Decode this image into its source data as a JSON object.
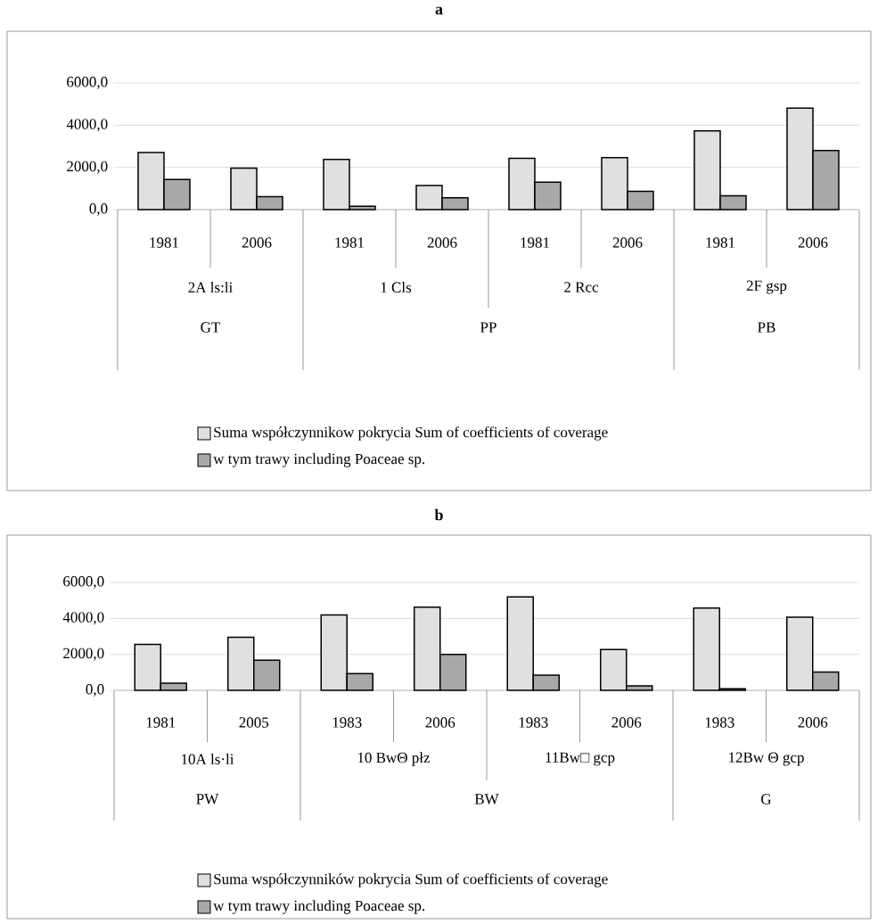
{
  "chart_data": [
    {
      "type": "bar",
      "title": "a",
      "categories": [
        "1981",
        "2006",
        "1981",
        "2006",
        "1981",
        "2006",
        "1981",
        "2006"
      ],
      "annotations": [
        "2A ls:li",
        "1 Cls",
        "2 Rcc",
        "2F gsp",
        "GT",
        "PP",
        "PB"
      ],
      "series": [
        {
          "name": "Suma współczynnikow pokrycia  Sum of coefficients of coverage",
          "color": "#e0e0e0",
          "values": [
            2700,
            1960,
            2380,
            1140,
            2430,
            2460,
            3730,
            4810
          ]
        },
        {
          "name": "w tym trawy including Poaceae sp.",
          "color": "#a8a8a8",
          "values": [
            1430,
            610,
            160,
            560,
            1300,
            870,
            660,
            2800
          ]
        }
      ],
      "ylim": [
        0,
        6000
      ],
      "yticks": [
        {
          "value": 0,
          "label": "0,0"
        },
        {
          "value": 2000,
          "label": "2000,0"
        },
        {
          "value": 4000,
          "label": "4000,0"
        },
        {
          "value": 6000,
          "label": "6000,0"
        }
      ],
      "grid": "y",
      "legend": "bottom"
    },
    {
      "type": "bar",
      "title": "b",
      "categories": [
        "1981",
        "2005",
        "1983",
        "2006",
        "1983",
        "2006",
        "1983",
        "2006"
      ],
      "annotations": [
        "10A  ls·li",
        "10 BwΘ płz",
        "11Bw□ gcp",
        "12Bw Θ gcp",
        "PW",
        "BW",
        "G"
      ],
      "series": [
        {
          "name": "Suma współczynników pokrycia  Sum of coefficients of coverage",
          "color": "#e0e0e0",
          "values": [
            2550,
            2950,
            4190,
            4630,
            5190,
            2270,
            4570,
            4070
          ]
        },
        {
          "name": "w tym trawy  including Poaceae sp.",
          "color": "#a8a8a8",
          "values": [
            400,
            1680,
            930,
            1990,
            840,
            250,
            90,
            1020
          ]
        }
      ],
      "ylim": [
        0,
        6000
      ],
      "yticks": [
        {
          "value": 0,
          "label": "0,0"
        },
        {
          "value": 2000,
          "label": "2000,0"
        },
        {
          "value": 4000,
          "label": "4000,0"
        },
        {
          "value": 6000,
          "label": "6000,0"
        }
      ],
      "grid": "y",
      "legend": "bottom"
    }
  ]
}
